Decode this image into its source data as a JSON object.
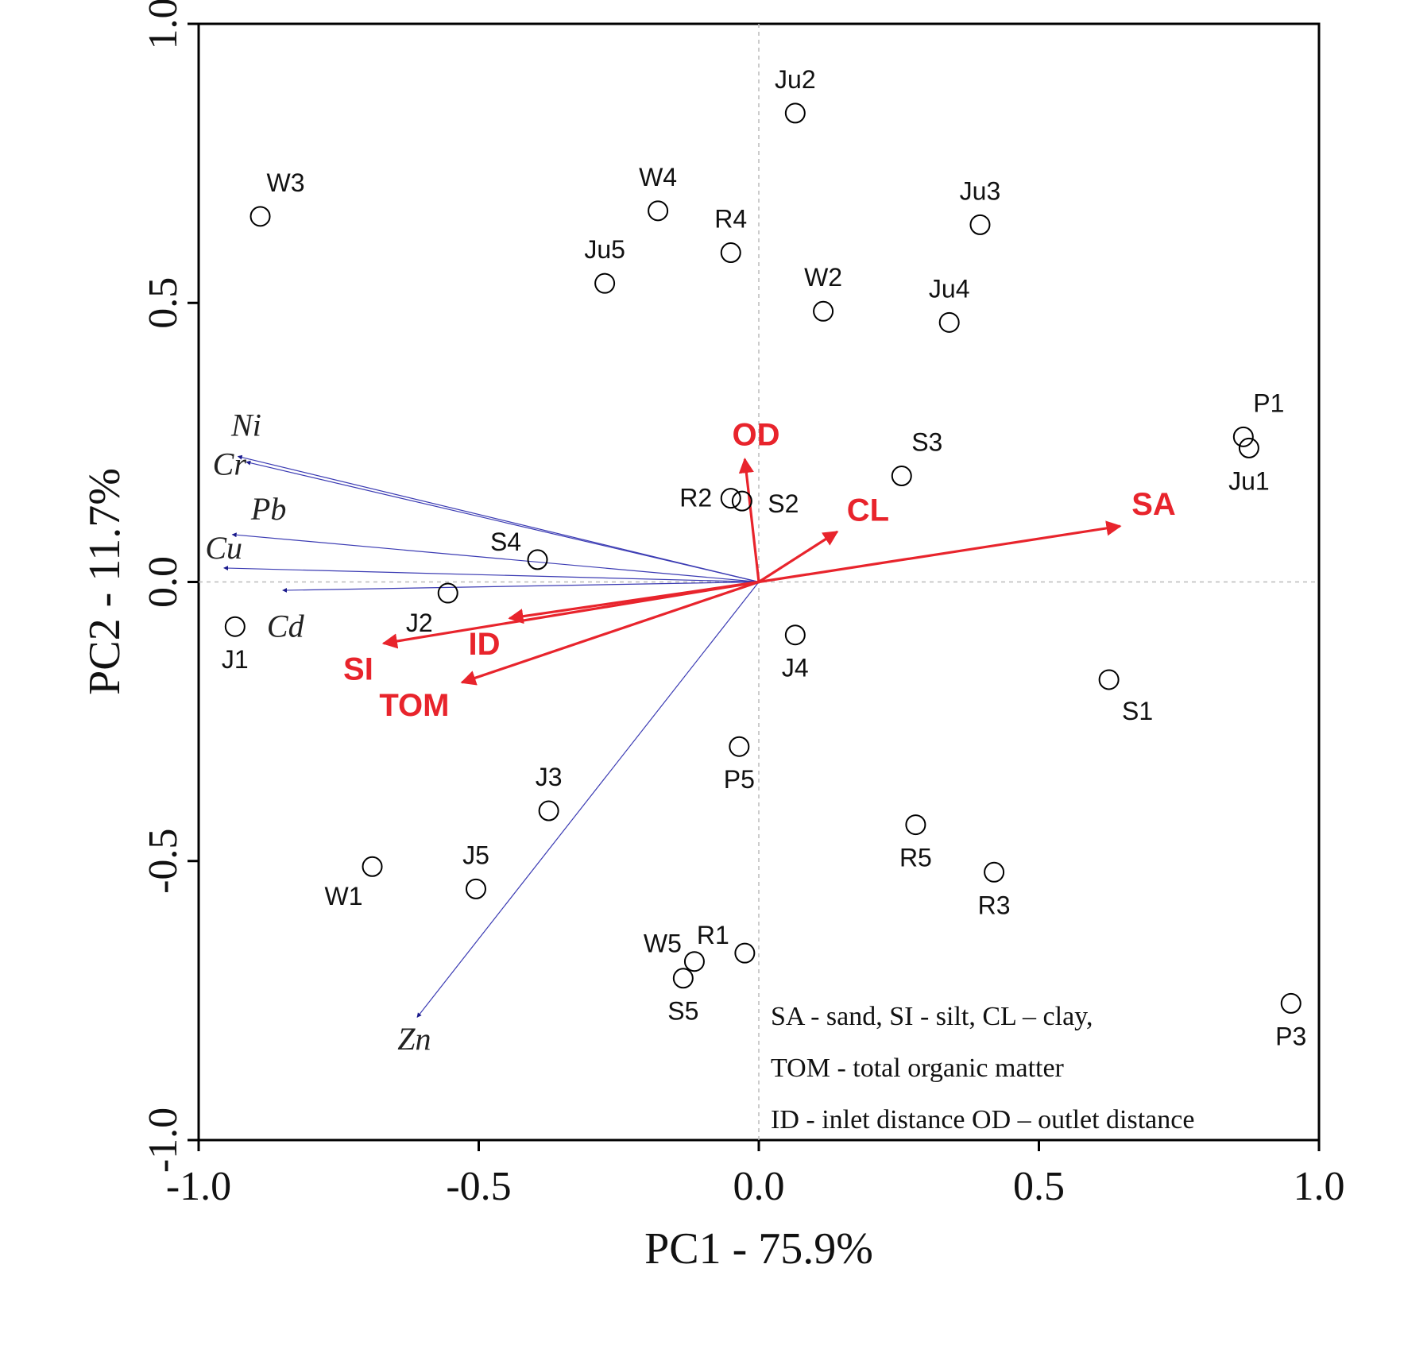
{
  "chart_data": {
    "type": "scatter",
    "subtype": "pca-biplot",
    "title": "",
    "xlabel": "PC1 - 75.9%",
    "ylabel": "PC2 - 11.7%",
    "xlim": [
      -1.0,
      1.0
    ],
    "ylim": [
      -1.0,
      1.0
    ],
    "xticks": [
      "-1.0",
      "-0.5",
      "0.0",
      "0.5",
      "1.0"
    ],
    "yticks": [
      "-1.0",
      "-0.5",
      "0.0",
      "0.5",
      "1.0"
    ],
    "tick_values": [
      -1.0,
      -0.5,
      0.0,
      0.5,
      1.0
    ],
    "samples": [
      {
        "label": "Ju2",
        "x": 0.065,
        "y": 0.84,
        "label_pos": "above"
      },
      {
        "label": "W3",
        "x": -0.89,
        "y": 0.655,
        "label_pos": "above-right"
      },
      {
        "label": "W4",
        "x": -0.18,
        "y": 0.665,
        "label_pos": "above"
      },
      {
        "label": "Ju3",
        "x": 0.395,
        "y": 0.64,
        "label_pos": "above"
      },
      {
        "label": "R4",
        "x": -0.05,
        "y": 0.59,
        "label_pos": "above"
      },
      {
        "label": "Ju5",
        "x": -0.275,
        "y": 0.535,
        "label_pos": "above"
      },
      {
        "label": "W2",
        "x": 0.115,
        "y": 0.485,
        "label_pos": "above"
      },
      {
        "label": "Ju4",
        "x": 0.34,
        "y": 0.465,
        "label_pos": "above"
      },
      {
        "label": "P1",
        "x": 0.865,
        "y": 0.26,
        "label_pos": "above-right"
      },
      {
        "label": "Ju1",
        "x": 0.875,
        "y": 0.24,
        "label_pos": "below"
      },
      {
        "label": "S3",
        "x": 0.255,
        "y": 0.19,
        "label_pos": "above-right"
      },
      {
        "label": "R2",
        "x": -0.05,
        "y": 0.15,
        "label_pos": "left"
      },
      {
        "label": "S2",
        "x": -0.03,
        "y": 0.145,
        "label_pos": "right"
      },
      {
        "label": "S4",
        "x": -0.395,
        "y": 0.04,
        "label_pos": "above-left"
      },
      {
        "label": "J2",
        "x": -0.555,
        "y": -0.02,
        "label_pos": "below-left"
      },
      {
        "label": "J1",
        "x": -0.935,
        "y": -0.08,
        "label_pos": "below"
      },
      {
        "label": "J4",
        "x": 0.065,
        "y": -0.095,
        "label_pos": "below"
      },
      {
        "label": "S1",
        "x": 0.625,
        "y": -0.175,
        "label_pos": "below-right"
      },
      {
        "label": "P5",
        "x": -0.035,
        "y": -0.295,
        "label_pos": "below"
      },
      {
        "label": "J3",
        "x": -0.375,
        "y": -0.41,
        "label_pos": "above"
      },
      {
        "label": "R5",
        "x": 0.28,
        "y": -0.435,
        "label_pos": "below"
      },
      {
        "label": "W1",
        "x": -0.69,
        "y": -0.51,
        "label_pos": "below-left"
      },
      {
        "label": "R3",
        "x": 0.42,
        "y": -0.52,
        "label_pos": "below"
      },
      {
        "label": "J5",
        "x": -0.505,
        "y": -0.55,
        "label_pos": "above"
      },
      {
        "label": "R1",
        "x": -0.025,
        "y": -0.665,
        "label_pos": "above-left"
      },
      {
        "label": "W5",
        "x": -0.115,
        "y": -0.68,
        "label_pos": "above-left"
      },
      {
        "label": "S5",
        "x": -0.135,
        "y": -0.71,
        "label_pos": "below"
      },
      {
        "label": "P3",
        "x": 0.95,
        "y": -0.755,
        "label_pos": "below"
      }
    ],
    "metal_vectors": [
      {
        "label": "Ni",
        "x": -0.93,
        "y": 0.225,
        "label_at": [
          -0.915,
          0.275
        ]
      },
      {
        "label": "Cr",
        "x": -0.915,
        "y": 0.215,
        "label_at": [
          -0.945,
          0.205
        ]
      },
      {
        "label": "Pb",
        "x": -0.94,
        "y": 0.085,
        "label_at": [
          -0.875,
          0.125
        ]
      },
      {
        "label": "Cu",
        "x": -0.955,
        "y": 0.025,
        "label_at": [
          -0.955,
          0.055
        ]
      },
      {
        "label": "Cd",
        "x": -0.85,
        "y": -0.015,
        "label_at": [
          -0.845,
          -0.085
        ]
      },
      {
        "label": "Zn",
        "x": -0.61,
        "y": -0.78,
        "label_at": [
          -0.615,
          -0.825
        ]
      }
    ],
    "variable_vectors": [
      {
        "label": "OD",
        "x": -0.025,
        "y": 0.22,
        "label_at": [
          -0.005,
          0.26
        ]
      },
      {
        "label": "CL",
        "x": 0.14,
        "y": 0.09,
        "label_at": [
          0.195,
          0.125
        ]
      },
      {
        "label": "SA",
        "x": 0.645,
        "y": 0.1,
        "label_at": [
          0.705,
          0.135
        ]
      },
      {
        "label": "ID",
        "x": -0.445,
        "y": -0.065,
        "label_at": [
          -0.49,
          -0.115
        ]
      },
      {
        "label": "SI",
        "x": -0.67,
        "y": -0.11,
        "label_at": [
          -0.715,
          -0.16
        ]
      },
      {
        "label": "TOM",
        "x": -0.53,
        "y": -0.18,
        "label_at": [
          -0.615,
          -0.225
        ]
      }
    ],
    "legend_lines": [
      "SA - sand, SI - silt, CL – clay,",
      "TOM - total organic matter",
      "ID - inlet distance OD – outlet distance"
    ],
    "colors": {
      "variable": "#e8242c",
      "metal": "#3b3bb3",
      "metal_arrowhead": "#1a1a8c",
      "axis": "#000000",
      "zero_line": "#bbbbbb"
    }
  }
}
